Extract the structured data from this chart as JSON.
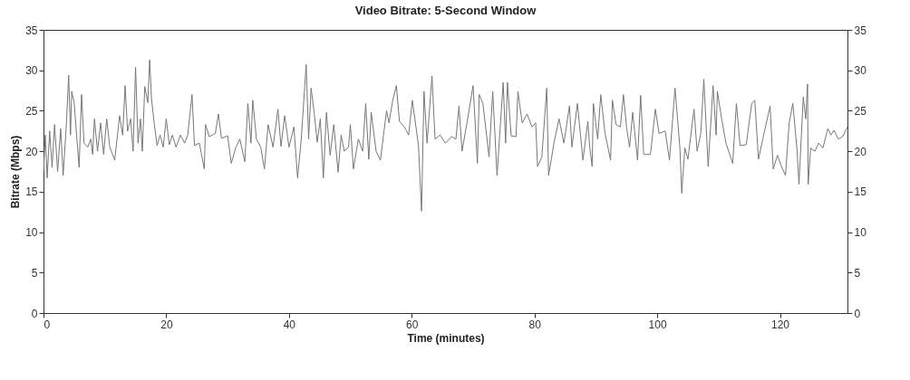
{
  "chart_data": {
    "type": "line",
    "title": "Video Bitrate: 5-Second Window",
    "xlabel": "Time (minutes)",
    "ylabel": "Bitrate (Mbps)",
    "xlim": [
      0,
      131
    ],
    "xticks": [
      0,
      20,
      40,
      60,
      80,
      100,
      120
    ],
    "ylim": [
      0,
      35
    ],
    "yticks": [
      0,
      5,
      10,
      15,
      20,
      25,
      30,
      35
    ],
    "y2lim": [
      0,
      35
    ],
    "y2ticks": [
      0,
      5,
      10,
      15,
      20,
      25,
      30,
      35
    ],
    "grid": false,
    "legend": false,
    "x": [
      0,
      0.3,
      0.6,
      1,
      1.4,
      1.8,
      2.3,
      2.8,
      3.2,
      3.7,
      4.1,
      4.4,
      4.6,
      5,
      5.4,
      5.8,
      6.2,
      6.6,
      7.2,
      7.7,
      8,
      8.3,
      8.8,
      9.3,
      9.8,
      10.3,
      10.8,
      11.6,
      12.4,
      12.9,
      13.3,
      13.7,
      14.2,
      14.6,
      15,
      15.4,
      15.8,
      16.1,
      16.5,
      17,
      17.3,
      17.6,
      18,
      18.5,
      19,
      19.5,
      20,
      20.5,
      21,
      21.6,
      22.3,
      23,
      23.5,
      24.2,
      24.6,
      25.4,
      26.2,
      26.4,
      27,
      28,
      28.5,
      29,
      30,
      30.6,
      31.3,
      32,
      32.8,
      33.3,
      33.8,
      34.1,
      34.7,
      35.4,
      36,
      36.6,
      37.4,
      38.2,
      38.7,
      39.3,
      40,
      40.8,
      41.4,
      42,
      42.8,
      43.2,
      43.6,
      44.1,
      44.6,
      45.1,
      45.6,
      46.1,
      46.7,
      47.3,
      48,
      48.5,
      49,
      49.7,
      50,
      50.5,
      51.3,
      52,
      52.5,
      53,
      53.4,
      54.2,
      54.9,
      55.9,
      56.3,
      56.9,
      57.5,
      58,
      58.8,
      59.5,
      60.1,
      61.1,
      61.6,
      62,
      62.5,
      63.3,
      63.8,
      64.6,
      65.5,
      66.5,
      67.2,
      67.7,
      68.2,
      69,
      70,
      70.7,
      71,
      71.6,
      72.6,
      73.2,
      73.9,
      74.9,
      75.3,
      75.6,
      76.2,
      77,
      77.3,
      78,
      78.8,
      79.6,
      80.2,
      80.5,
      81.2,
      82,
      82.3,
      83.2,
      84,
      84.8,
      85.7,
      86.1,
      87,
      87.9,
      88.7,
      89,
      89.4,
      89.6,
      90.3,
      90.8,
      91.5,
      92.4,
      92.7,
      93.3,
      94,
      94.5,
      95,
      95.5,
      96,
      96.8,
      97.3,
      97.8,
      98.9,
      99.7,
      100.3,
      101.3,
      102,
      102.9,
      103.7,
      104,
      104.5,
      105,
      106,
      106.5,
      107.1,
      107.6,
      108.3,
      109.1,
      109.6,
      109.8,
      110.5,
      111.2,
      112.3,
      112.9,
      113.5,
      114.5,
      115.4,
      115.9,
      116.5,
      117.2,
      118.4,
      118.9,
      119.6,
      120.3,
      120.9,
      121.5,
      122.1,
      122.8,
      123.1,
      123.8,
      124.2,
      124.5,
      124.6,
      125,
      125.7,
      126.3,
      127,
      127.8,
      128.3,
      128.8,
      129.5,
      130.2,
      131
    ],
    "series": [
      {
        "color": "#777777",
        "values": [
          17.5,
          22,
          16.7,
          22.5,
          18,
          23.3,
          17.5,
          22.8,
          17,
          23,
          29.4,
          22,
          27.4,
          26,
          21.9,
          18,
          27,
          21,
          20.5,
          21.5,
          19.6,
          24,
          20,
          23.5,
          19.6,
          24,
          20.5,
          18.9,
          24.4,
          22,
          28.1,
          22.5,
          24,
          20,
          30.4,
          21,
          24,
          20,
          28,
          26,
          31.3,
          26.5,
          23.7,
          20.7,
          22,
          20.5,
          24,
          20.8,
          22,
          20.5,
          22,
          21,
          22,
          27,
          20.7,
          21,
          17.8,
          23.3,
          21.8,
          22.2,
          24.6,
          21.6,
          21.9,
          18.5,
          20.4,
          21.5,
          18.7,
          25.9,
          21,
          26.3,
          21.5,
          20.5,
          17.8,
          23.3,
          20.5,
          25.2,
          20.6,
          24.4,
          20.5,
          23,
          16.7,
          21.5,
          30.7,
          21.5,
          27.8,
          24.8,
          21.1,
          24,
          16.7,
          24.8,
          19.5,
          23.3,
          17.4,
          22,
          20,
          20.5,
          23.3,
          17.8,
          21.5,
          20,
          25.9,
          19,
          24.8,
          20,
          18.9,
          25,
          23.5,
          26.3,
          28.1,
          23.7,
          23,
          22,
          26.3,
          20.7,
          12.6,
          27.4,
          21,
          29.3,
          21.5,
          22,
          21,
          21.8,
          21.5,
          25.6,
          20,
          23.5,
          28.1,
          18.5,
          27,
          25.9,
          19.3,
          27.4,
          17,
          28.5,
          21,
          28.5,
          21.9,
          21.8,
          27.4,
          23.5,
          24.6,
          23,
          23.5,
          18.1,
          19.3,
          27.8,
          17,
          21.1,
          24,
          21,
          25.6,
          20.5,
          25.9,
          18.9,
          23.7,
          20.5,
          18.1,
          25.9,
          21.5,
          27,
          22.2,
          18.9,
          26.3,
          23.3,
          23,
          27,
          23,
          20.5,
          24.8,
          18.9,
          26.9,
          19.6,
          19.6,
          25.2,
          22.2,
          22.5,
          18.9,
          27.8,
          20.4,
          14.8,
          20.4,
          19,
          25.2,
          20,
          22.2,
          28.9,
          18.1,
          28.1,
          22,
          27.4,
          24,
          21,
          18.5,
          25.9,
          20.7,
          20.8,
          25.9,
          26.3,
          19,
          21.5,
          25.6,
          17.8,
          19.5,
          18,
          17,
          23.5,
          25.9,
          20,
          15.9,
          26.7,
          24,
          28.3,
          15.9,
          20.4,
          20,
          21,
          20.4,
          22.8,
          22,
          22.6,
          21.5,
          21.8,
          23
        ]
      }
    ]
  }
}
